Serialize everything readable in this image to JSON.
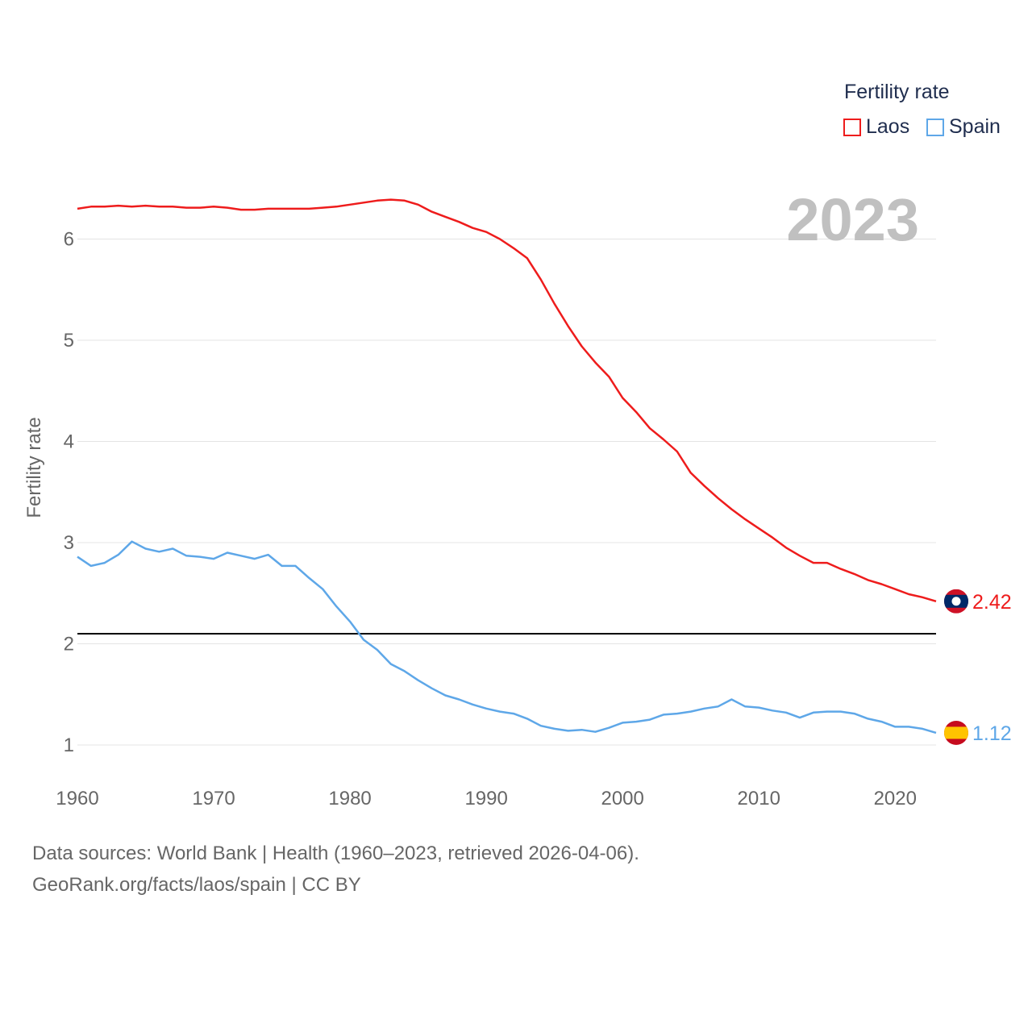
{
  "chart_data": {
    "type": "line",
    "title": "",
    "big_year": "2023",
    "ylabel": "Fertility rate",
    "xlabel": "",
    "xlim": [
      1960,
      2023
    ],
    "ylim": [
      0.6,
      6.8
    ],
    "x_ticks": [
      1960,
      1970,
      1980,
      1990,
      2000,
      2010,
      2020
    ],
    "y_ticks": [
      1,
      2,
      3,
      4,
      5,
      6
    ],
    "reference_line": 2.1,
    "legend": {
      "title": "Fertility rate",
      "position": "top-right"
    },
    "x": [
      1960,
      1961,
      1962,
      1963,
      1964,
      1965,
      1966,
      1967,
      1968,
      1969,
      1970,
      1971,
      1972,
      1973,
      1974,
      1975,
      1976,
      1977,
      1978,
      1979,
      1980,
      1981,
      1982,
      1983,
      1984,
      1985,
      1986,
      1987,
      1988,
      1989,
      1990,
      1991,
      1992,
      1993,
      1994,
      1995,
      1996,
      1997,
      1998,
      1999,
      2000,
      2001,
      2002,
      2003,
      2004,
      2005,
      2006,
      2007,
      2008,
      2009,
      2010,
      2011,
      2012,
      2013,
      2014,
      2015,
      2016,
      2017,
      2018,
      2019,
      2020,
      2021,
      2022,
      2023
    ],
    "series": [
      {
        "name": "Laos",
        "color": "#ee1c1c",
        "end_label": "2.42",
        "flag": "laos",
        "values": [
          6.3,
          6.32,
          6.32,
          6.33,
          6.32,
          6.33,
          6.32,
          6.32,
          6.31,
          6.31,
          6.32,
          6.31,
          6.29,
          6.29,
          6.3,
          6.3,
          6.3,
          6.3,
          6.31,
          6.32,
          6.34,
          6.36,
          6.38,
          6.39,
          6.38,
          6.34,
          6.27,
          6.22,
          6.17,
          6.11,
          6.07,
          6.0,
          5.91,
          5.81,
          5.6,
          5.36,
          5.14,
          4.94,
          4.78,
          4.64,
          4.43,
          4.29,
          4.13,
          4.02,
          3.9,
          3.69,
          3.56,
          3.44,
          3.33,
          3.23,
          3.14,
          3.05,
          2.95,
          2.87,
          2.8,
          2.8,
          2.74,
          2.69,
          2.63,
          2.59,
          2.54,
          2.49,
          2.46,
          2.42
        ]
      },
      {
        "name": "Spain",
        "color": "#5ea7e8",
        "end_label": "1.12",
        "flag": "spain",
        "values": [
          2.86,
          2.77,
          2.8,
          2.88,
          3.01,
          2.94,
          2.91,
          2.94,
          2.87,
          2.86,
          2.84,
          2.9,
          2.87,
          2.84,
          2.88,
          2.77,
          2.77,
          2.65,
          2.54,
          2.37,
          2.22,
          2.04,
          1.94,
          1.8,
          1.73,
          1.64,
          1.56,
          1.49,
          1.45,
          1.4,
          1.36,
          1.33,
          1.31,
          1.26,
          1.19,
          1.16,
          1.14,
          1.15,
          1.13,
          1.17,
          1.22,
          1.23,
          1.25,
          1.3,
          1.31,
          1.33,
          1.36,
          1.38,
          1.45,
          1.38,
          1.37,
          1.34,
          1.32,
          1.27,
          1.32,
          1.33,
          1.33,
          1.31,
          1.26,
          1.23,
          1.18,
          1.18,
          1.16,
          1.12
        ]
      }
    ]
  },
  "footer": {
    "line1": "Data sources: World Bank | Health (1960–2023, retrieved 2026-04-06).",
    "line2": "GeoRank.org/facts/laos/spain | CC BY"
  }
}
